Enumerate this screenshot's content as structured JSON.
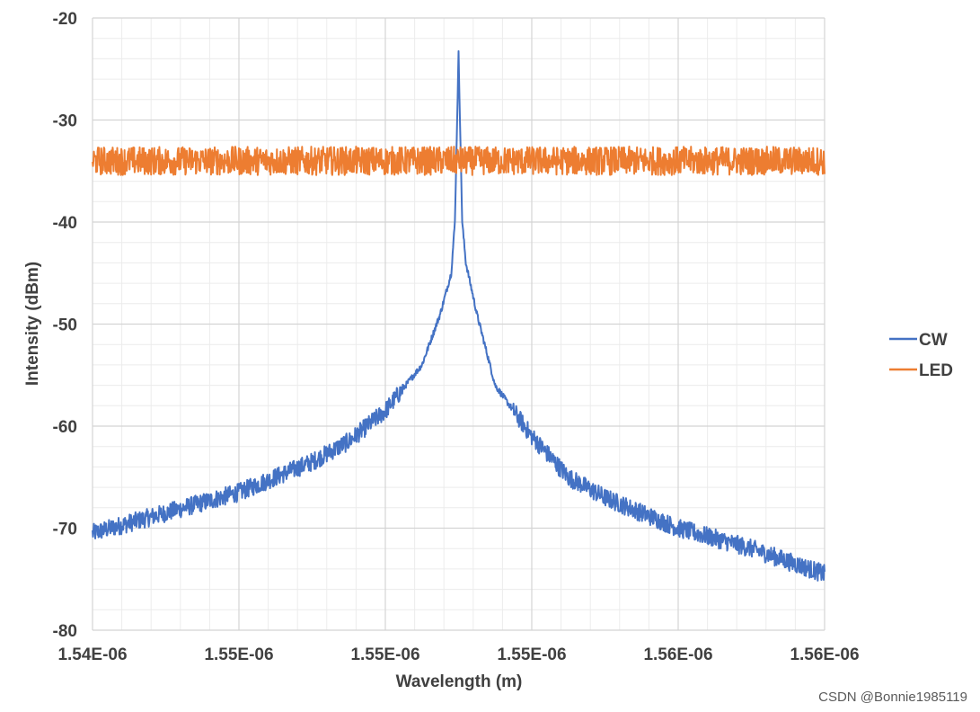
{
  "chart_data": {
    "type": "line",
    "xlabel": "Wavelength (m)",
    "ylabel": "Intensity (dBm)",
    "x_tick_labels": [
      "1.54E-06",
      "1.55E-06",
      "1.55E-06",
      "1.55E-06",
      "1.56E-06",
      "1.56E-06"
    ],
    "y_ticks": [
      -20,
      -30,
      -40,
      -50,
      -60,
      -70,
      -80
    ],
    "y_tick_labels": [
      "-20",
      "-30",
      "-40",
      "-50",
      "-60",
      "-70",
      "-80"
    ],
    "xlim": [
      1.54e-06,
      1.56e-06
    ],
    "ylim": [
      -80,
      -20
    ],
    "grid": true,
    "legend_position": "right",
    "series": [
      {
        "name": "CW",
        "color": "#4472c4",
        "x": [
          1.54e-06,
          1.542e-06,
          1.544e-06,
          1.546e-06,
          1.547e-06,
          1.548e-06,
          1.549e-06,
          1.5495e-06,
          1.5498e-06,
          1.5499e-06,
          1.55e-06,
          1.5501e-06,
          1.5502e-06,
          1.5505e-06,
          1.551e-06,
          1.552e-06,
          1.553e-06,
          1.554e-06,
          1.556e-06,
          1.558e-06,
          1.56e-06
        ],
        "y": [
          -70.5,
          -68.5,
          -66.5,
          -63.5,
          -61.5,
          -58.5,
          -54.0,
          -49.0,
          -45.0,
          -40.0,
          -23.5,
          -40.0,
          -44.0,
          -49.0,
          -56.0,
          -61.0,
          -65.0,
          -67.0,
          -70.0,
          -72.0,
          -74.5
        ]
      },
      {
        "name": "LED",
        "color": "#ed7d31",
        "x": [
          1.54e-06,
          1.56e-06
        ],
        "y": [
          -34.0,
          -34.0
        ]
      }
    ]
  },
  "watermark": "CSDN @Bonnie1985119"
}
